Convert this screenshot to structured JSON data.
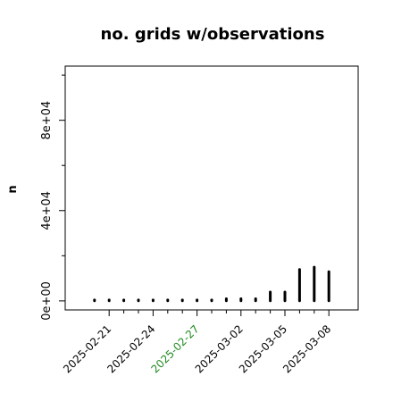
{
  "chart_data": {
    "type": "scatter",
    "title": "no. grids w/observations",
    "xlabel": "",
    "ylabel": "n",
    "ylim": [
      -4000,
      104000
    ],
    "y_ticks": [
      0,
      40000,
      80000
    ],
    "y_tick_labels": [
      "0e+00",
      "4e+04",
      "8e+04"
    ],
    "y_minor_ticks": [
      20000,
      60000,
      100000
    ],
    "x_ticks": [
      "2025-02-21",
      "2025-02-24",
      "2025-02-27",
      "2025-03-02",
      "2025-03-05",
      "2025-03-08"
    ],
    "x_tick_labels": [
      "2025-02-21",
      "2025-02-24",
      "2025-02-27",
      "2025-03-02",
      "2025-03-05",
      "2025-03-08"
    ],
    "x_tick_highlight": "2025-02-27",
    "x_minor_ticks": [
      "2025-02-22",
      "2025-02-23",
      "2025-02-25",
      "2025-02-26",
      "2025-02-28",
      "2025-03-01",
      "2025-03-03",
      "2025-03-04",
      "2025-03-06",
      "2025-03-07"
    ],
    "x_range": [
      "2025-02-18",
      "2025-03-10"
    ],
    "grid": false,
    "legend": "none",
    "series": [
      {
        "points": [
          {
            "x": "2025-02-20",
            "y": [
              0,
              500
            ]
          },
          {
            "x": "2025-02-21",
            "y": [
              0,
              500
            ]
          },
          {
            "x": "2025-02-22",
            "y": [
              0,
              500
            ]
          },
          {
            "x": "2025-02-23",
            "y": [
              0,
              500
            ]
          },
          {
            "x": "2025-02-24",
            "y": [
              0,
              500
            ]
          },
          {
            "x": "2025-02-25",
            "y": [
              0,
              500
            ]
          },
          {
            "x": "2025-02-26",
            "y": [
              0,
              500
            ]
          },
          {
            "x": "2025-02-27",
            "y": [
              0,
              500
            ]
          },
          {
            "x": "2025-02-28",
            "y": [
              0,
              500
            ]
          },
          {
            "x": "2025-03-01",
            "y": [
              0,
              1000
            ]
          },
          {
            "x": "2025-03-02",
            "y": [
              0,
              1000
            ]
          },
          {
            "x": "2025-03-03",
            "y": [
              0,
              1000
            ]
          },
          {
            "x": "2025-03-04",
            "y": [
              0,
              4000
            ]
          },
          {
            "x": "2025-03-05",
            "y": [
              0,
              4000
            ]
          },
          {
            "x": "2025-03-06",
            "y": [
              0,
              14000
            ]
          },
          {
            "x": "2025-03-07",
            "y": [
              0,
              15000
            ]
          },
          {
            "x": "2025-03-08",
            "y": [
              0,
              13000
            ]
          }
        ]
      }
    ],
    "colors": {
      "points": "#000000",
      "axis": "#000000",
      "highlight_label": "#228B22"
    }
  }
}
